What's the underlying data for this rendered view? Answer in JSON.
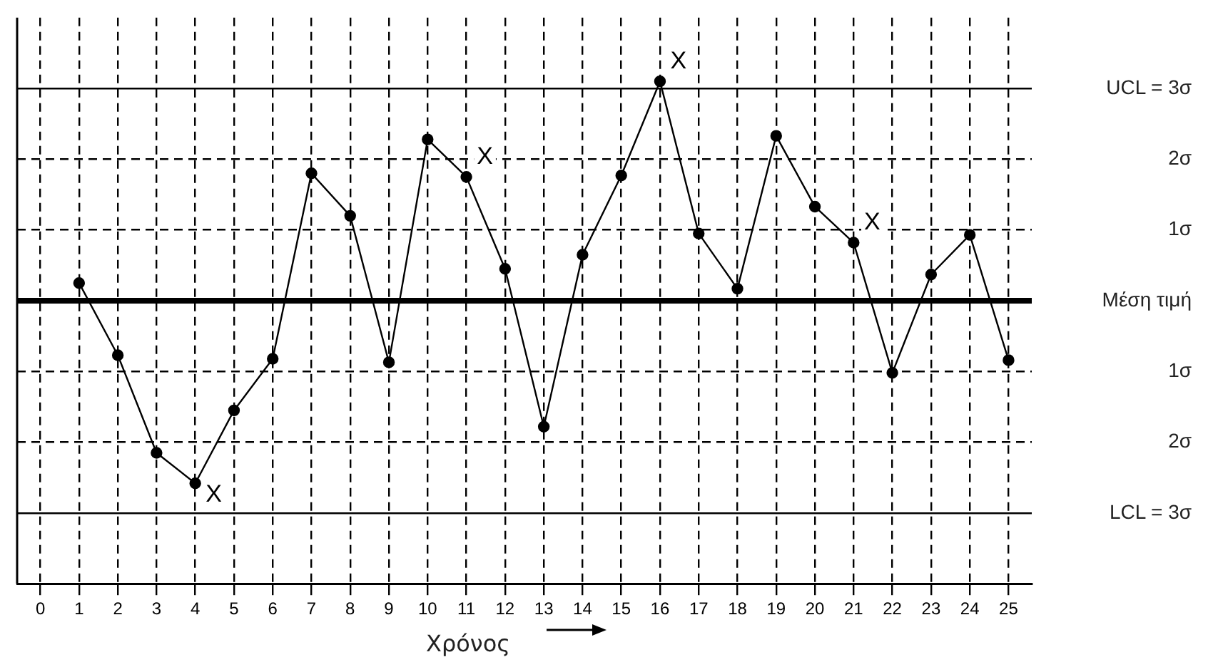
{
  "chart_data": {
    "type": "line",
    "xlabel": "Χρόνος",
    "x": [
      1,
      2,
      3,
      4,
      5,
      6,
      7,
      8,
      9,
      10,
      11,
      12,
      13,
      14,
      15,
      16,
      17,
      18,
      19,
      20,
      21,
      22,
      23,
      24,
      25
    ],
    "series": [
      {
        "color": "#000000",
        "values": [
          0.25,
          -0.77,
          -2.15,
          -2.58,
          -1.55,
          -0.82,
          1.8,
          1.2,
          -0.87,
          2.28,
          1.75,
          0.45,
          -1.78,
          0.65,
          1.77,
          3.1,
          0.95,
          0.17,
          2.33,
          1.33,
          0.82,
          -1.02,
          0.37,
          0.93,
          -0.84
        ]
      }
    ],
    "xlim": [
      -0.6,
      25.6
    ],
    "xticks": [
      0,
      1,
      2,
      3,
      4,
      5,
      6,
      7,
      8,
      9,
      10,
      11,
      12,
      13,
      14,
      15,
      16,
      17,
      18,
      19,
      20,
      21,
      22,
      23,
      24,
      25
    ],
    "ylim": [
      -4,
      4
    ],
    "yticks": [
      {
        "value": -3,
        "label": "LCL = 3σ"
      },
      {
        "value": -2,
        "label": "2σ"
      },
      {
        "value": -1,
        "label": "1σ"
      },
      {
        "value": 0,
        "label": "Μέση τιμή"
      },
      {
        "value": 1,
        "label": "1σ"
      },
      {
        "value": 2,
        "label": "2σ"
      },
      {
        "value": 3,
        "label": "UCL = 3σ"
      }
    ],
    "grid": true,
    "legend": false,
    "marker": "circle",
    "line_style": "solid",
    "annotations": [
      {
        "text": "X",
        "x": 4,
        "y": -2.58
      },
      {
        "text": "X",
        "x": 11,
        "y": 1.75
      },
      {
        "text": "X",
        "x": 16,
        "y": 3.1
      },
      {
        "text": "X",
        "x": 21,
        "y": 0.82
      }
    ]
  }
}
